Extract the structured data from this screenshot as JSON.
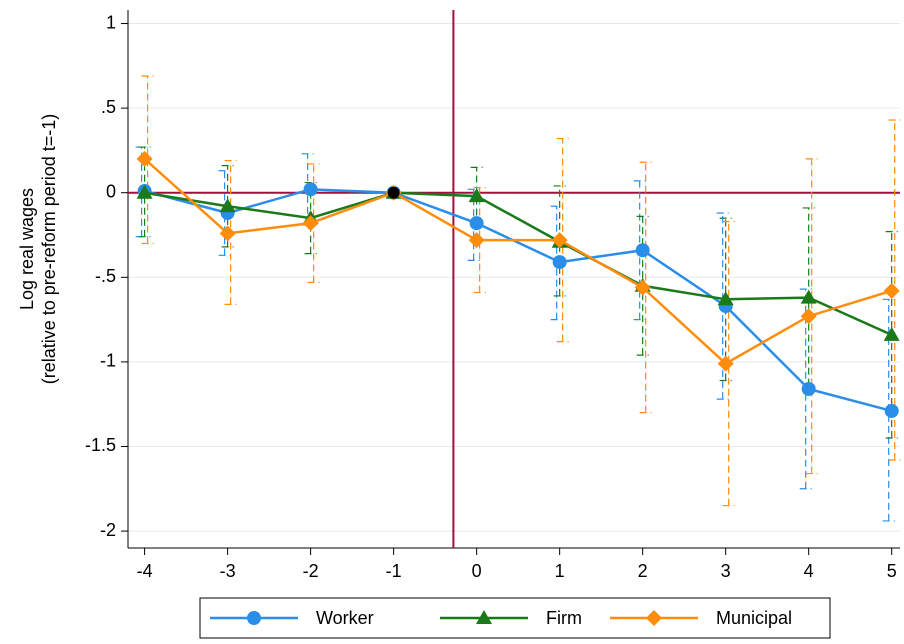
{
  "chart_data": {
    "type": "line",
    "y_label": [
      "Log real wages",
      "(relative to pre-reform period t=-1)"
    ],
    "x": [
      -4,
      -3,
      -2,
      -1,
      0,
      1,
      2,
      3,
      4,
      5
    ],
    "xlim": [
      -4.2,
      5.1
    ],
    "xticks": [
      -4,
      -3,
      -2,
      -1,
      0,
      1,
      2,
      3,
      4,
      5
    ],
    "ylim": [
      -2.1,
      1.08
    ],
    "yticks": [
      1,
      {
        "value": 0.5,
        "label": ".5"
      },
      0,
      {
        "value": -0.5,
        "label": "-.5"
      },
      -1,
      -1.5,
      -2
    ],
    "grid": true,
    "vline": -0.28,
    "vline_color": "#a0103a",
    "hline": 0,
    "hline_color": "#a0103a",
    "reference_point": {
      "x": -1,
      "y": 0,
      "color": "#000000"
    },
    "legend_position": "bottom",
    "series": [
      {
        "name": "Worker",
        "color": "#2a8ee8",
        "marker": "circle",
        "values": [
          0.01,
          -0.12,
          0.02,
          0,
          -0.18,
          -0.41,
          -0.34,
          -0.67,
          -1.16,
          -1.29
        ],
        "lower": [
          -0.26,
          -0.37,
          -0.19,
          null,
          -0.4,
          -0.75,
          -0.75,
          -1.22,
          -1.75,
          -1.94
        ],
        "upper": [
          0.27,
          0.13,
          0.23,
          null,
          0.02,
          -0.08,
          0.07,
          -0.12,
          -0.57,
          -0.63
        ]
      },
      {
        "name": "Firm",
        "color": "#1a7a1a",
        "marker": "triangle",
        "values": [
          0,
          -0.08,
          -0.15,
          0,
          -0.02,
          -0.29,
          -0.55,
          -0.63,
          -0.62,
          -0.84
        ],
        "lower": [
          -0.26,
          -0.32,
          -0.36,
          null,
          -0.2,
          -0.61,
          -0.96,
          -1.11,
          -1.14,
          -1.45
        ],
        "upper": [
          0.27,
          0.16,
          0.06,
          null,
          0.15,
          0.04,
          -0.14,
          -0.15,
          -0.09,
          -0.23
        ]
      },
      {
        "name": "Municipal",
        "color": "#ff8c0a",
        "marker": "diamond",
        "values": [
          0.2,
          -0.24,
          -0.18,
          0,
          -0.28,
          -0.28,
          -0.56,
          -1.01,
          -0.73,
          -0.58
        ],
        "lower": [
          -0.3,
          -0.66,
          -0.53,
          null,
          -0.59,
          -0.88,
          -1.3,
          -1.85,
          -1.66,
          -1.58
        ],
        "upper": [
          0.69,
          0.19,
          0.17,
          null,
          0.03,
          0.32,
          0.18,
          -0.17,
          0.2,
          0.43
        ]
      }
    ]
  }
}
